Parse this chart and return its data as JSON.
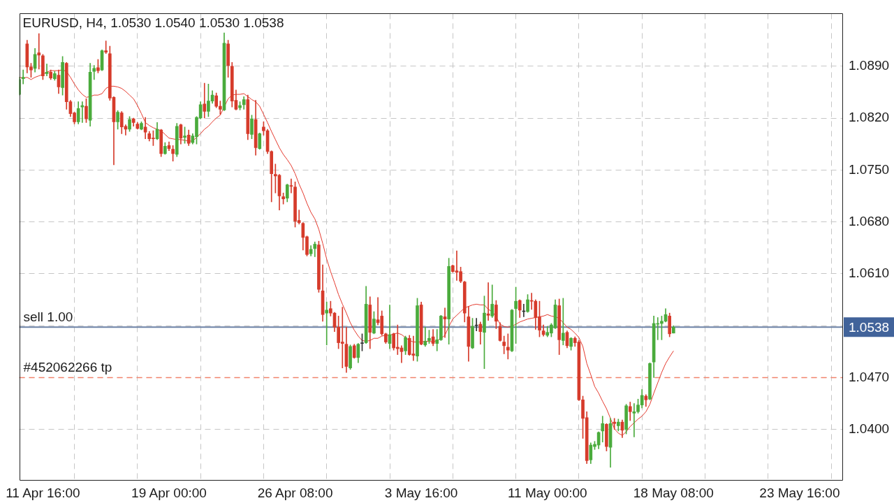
{
  "chart_data": {
    "type": "candlestick",
    "title": "EURUSD, H4, 1.0530 1.0540 1.0530 1.0538",
    "categories": [
      null,
      null,
      null,
      null,
      null,
      null,
      "11 Apr 16:00",
      null,
      null,
      null,
      null,
      null,
      null,
      null,
      null,
      null,
      null,
      null,
      null,
      null,
      null,
      null,
      null,
      null,
      null,
      null,
      null,
      null,
      null,
      null,
      null,
      null,
      null,
      null,
      null,
      null,
      null,
      null,
      "19 Apr 00:00",
      null,
      null,
      null,
      null,
      null,
      null,
      null,
      null,
      null,
      null,
      null,
      null,
      null,
      null,
      null,
      null,
      null,
      null,
      null,
      null,
      null,
      null,
      null,
      null,
      null,
      null,
      null,
      null,
      null,
      null,
      null,
      "26 Apr 08:00",
      null,
      null,
      null,
      null,
      null,
      null,
      null,
      null,
      null,
      null,
      null,
      null,
      null,
      null,
      null,
      null,
      null,
      null,
      null,
      null,
      null,
      null,
      null,
      null,
      null,
      null,
      null,
      null,
      null,
      null,
      null,
      "3 May 16:00",
      null,
      null,
      null,
      null,
      null,
      null,
      null,
      null,
      null,
      null,
      null,
      null,
      null,
      null,
      null,
      null,
      null,
      null,
      null,
      null,
      null,
      null,
      null,
      null,
      null,
      null,
      null,
      null,
      null,
      null,
      null,
      "11 May 00:00",
      null,
      null,
      null,
      null,
      null,
      null,
      null,
      null,
      null,
      null,
      null,
      null,
      null,
      null,
      null,
      null,
      null,
      null,
      null,
      null,
      null,
      null,
      null,
      null,
      null,
      null,
      null,
      null,
      null,
      null,
      null,
      "18 May 08:00",
      null,
      null,
      null,
      null,
      null,
      null,
      null,
      null,
      null,
      null,
      null,
      null,
      null,
      null,
      null,
      null,
      null,
      null,
      null,
      null,
      null,
      null,
      null,
      null,
      null,
      null,
      null,
      null,
      null,
      null,
      null,
      "23 May 16:00",
      null,
      null,
      null,
      null,
      null,
      null,
      null,
      null,
      null,
      null,
      null
    ],
    "ylim": [
      1.0331,
      1.0961
    ],
    "yticks": [
      {
        "value": 1.04,
        "label": "1.0400"
      },
      {
        "value": 1.047,
        "label": "1.0470"
      },
      {
        "value": 1.054,
        "label": null
      },
      {
        "value": 1.061,
        "label": "1.0610"
      },
      {
        "value": 1.068,
        "label": "1.0680"
      },
      {
        "value": 1.075,
        "label": "1.0750"
      },
      {
        "value": 1.082,
        "label": "1.0820"
      },
      {
        "value": 1.089,
        "label": "1.0890"
      }
    ],
    "grid": true,
    "series": [
      {
        "ohlc": [
          [
            1.0852,
            1.0875,
            1.0851,
            1.0872
          ],
          [
            1.0873,
            1.0885,
            1.0866,
            1.0875
          ],
          [
            1.092,
            1.0925,
            1.0881,
            1.0889
          ],
          [
            1.0889,
            1.0894,
            1.0875,
            1.0885
          ],
          [
            1.0887,
            1.0914,
            1.0882,
            1.0906
          ],
          [
            1.0908,
            1.0934,
            1.0886,
            1.0905
          ],
          [
            1.0904,
            1.0906,
            1.0872,
            1.0877
          ],
          [
            1.088,
            1.0893,
            1.0877,
            1.0882
          ],
          [
            1.0882,
            1.0885,
            1.0872,
            1.0874
          ],
          [
            1.0873,
            1.0883,
            1.0871,
            1.088
          ],
          [
            1.0878,
            1.0885,
            1.0853,
            1.0862
          ],
          [
            1.0861,
            1.0903,
            1.0851,
            1.0895
          ],
          [
            1.0894,
            1.0895,
            1.0832,
            1.0842
          ],
          [
            1.0842,
            1.0844,
            1.0822,
            1.0826
          ],
          [
            1.0827,
            1.0828,
            1.0812,
            1.0815
          ],
          [
            1.0815,
            1.0842,
            1.0812,
            1.0833
          ],
          [
            1.0835,
            1.0842,
            1.0814,
            1.0837
          ],
          [
            1.0836,
            1.0846,
            1.0814,
            1.0819
          ],
          [
            1.0817,
            1.0894,
            1.0809,
            1.0882
          ],
          [
            1.0883,
            1.0891,
            1.0872,
            1.0887
          ],
          [
            1.0888,
            1.0899,
            1.0881,
            1.0884
          ],
          [
            1.0885,
            1.0912,
            1.0884,
            1.0911
          ],
          [
            1.0911,
            1.0924,
            1.0907,
            1.0909
          ],
          [
            1.0907,
            1.0917,
            1.0844,
            1.0847
          ],
          [
            1.0848,
            1.0849,
            1.0757,
            1.0815
          ],
          [
            1.0815,
            1.083,
            1.0805,
            1.0828
          ],
          [
            1.0827,
            1.0829,
            1.0799,
            1.0808
          ],
          [
            1.0809,
            1.0811,
            1.0797,
            1.0805
          ],
          [
            1.0805,
            1.0822,
            1.0802,
            1.0818
          ],
          [
            1.0819,
            1.082,
            1.0809,
            1.0814
          ],
          [
            1.0812,
            1.0814,
            1.0805,
            1.0806
          ],
          [
            1.0805,
            1.0815,
            1.0804,
            1.0813
          ],
          [
            1.0808,
            1.0821,
            1.0792,
            1.0801
          ],
          [
            1.0799,
            1.0802,
            1.0789,
            1.0792
          ],
          [
            1.0793,
            1.0803,
            1.0783,
            1.0792
          ],
          [
            1.0792,
            1.0814,
            1.0791,
            1.0805
          ],
          [
            1.0804,
            1.0805,
            1.0768,
            1.0772
          ],
          [
            1.0772,
            1.0787,
            1.0771,
            1.0782
          ],
          [
            1.0783,
            1.0788,
            1.0776,
            1.0779
          ],
          [
            1.0778,
            1.0783,
            1.0762,
            1.0772
          ],
          [
            1.0771,
            1.0813,
            1.0768,
            1.0809
          ],
          [
            1.0811,
            1.0812,
            1.0785,
            1.0793
          ],
          [
            1.0794,
            1.0808,
            1.0786,
            1.0796
          ],
          [
            1.0797,
            1.0804,
            1.0783,
            1.0786
          ],
          [
            1.0787,
            1.0799,
            1.0785,
            1.0796
          ],
          [
            1.0795,
            1.0822,
            1.0785,
            1.0821
          ],
          [
            1.082,
            1.0842,
            1.0819,
            1.0838
          ],
          [
            1.0839,
            1.0867,
            1.082,
            1.0829
          ],
          [
            1.0829,
            1.0866,
            1.0822,
            1.0843
          ],
          [
            1.0843,
            1.0857,
            1.084,
            1.0851
          ],
          [
            1.085,
            1.0854,
            1.0834,
            1.0836
          ],
          [
            1.0836,
            1.0843,
            1.0825,
            1.0832
          ],
          [
            1.0831,
            1.0935,
            1.083,
            1.0921
          ],
          [
            1.092,
            1.0925,
            1.0875,
            1.0891
          ],
          [
            1.089,
            1.0895,
            1.0835,
            1.0843
          ],
          [
            1.0844,
            1.0858,
            1.0831,
            1.0832
          ],
          [
            1.0834,
            1.0842,
            1.0831,
            1.0837
          ],
          [
            1.0838,
            1.0849,
            1.0832,
            1.0845
          ],
          [
            1.0845,
            1.0851,
            1.0791,
            1.0799
          ],
          [
            1.0798,
            1.0824,
            1.0792,
            1.0819
          ],
          [
            1.0818,
            1.0844,
            1.077,
            1.078
          ],
          [
            1.0779,
            1.08,
            1.0778,
            1.0799
          ],
          [
            1.0808,
            1.0815,
            1.0797,
            1.0803
          ],
          [
            1.0803,
            1.0805,
            1.0772,
            1.0775
          ],
          [
            1.0775,
            1.0776,
            1.0707,
            1.0745
          ],
          [
            1.0744,
            1.0758,
            1.0719,
            1.0742
          ],
          [
            1.0743,
            1.0744,
            1.0696,
            1.0715
          ],
          [
            1.0714,
            1.0719,
            1.0704,
            1.0711
          ],
          [
            1.0712,
            1.0731,
            1.0707,
            1.073
          ],
          [
            1.0729,
            1.0738,
            1.0719,
            1.0728
          ],
          [
            1.0727,
            1.0734,
            1.0673,
            1.0681
          ],
          [
            1.0682,
            1.0696,
            1.0677,
            1.0679
          ],
          [
            1.0678,
            1.0679,
            1.0642,
            1.0659
          ],
          [
            1.066,
            1.0661,
            1.0634,
            1.0636
          ],
          [
            1.0637,
            1.0648,
            1.0634,
            1.0643
          ],
          [
            1.0644,
            1.0653,
            1.0633,
            1.065
          ],
          [
            1.0649,
            1.0654,
            1.0585,
            1.0589
          ],
          [
            1.0587,
            1.0622,
            1.0546,
            1.0555
          ],
          [
            1.0557,
            1.0572,
            1.0514,
            1.0561
          ],
          [
            1.0563,
            1.0573,
            1.0553,
            1.0557
          ],
          [
            1.0557,
            1.0558,
            1.0532,
            1.0538
          ],
          [
            1.0538,
            1.0553,
            1.0509,
            1.0517
          ],
          [
            1.0518,
            1.0565,
            1.0483,
            1.0516
          ],
          [
            1.0515,
            1.0538,
            1.0477,
            1.0485
          ],
          [
            1.0483,
            1.0514,
            1.0481,
            1.0512
          ],
          [
            1.0513,
            1.0515,
            1.0496,
            1.0497
          ],
          [
            1.0497,
            1.0516,
            1.049,
            1.0515
          ],
          [
            1.0516,
            1.0529,
            1.0506,
            1.0516
          ],
          [
            1.0517,
            1.0593,
            1.0516,
            1.0569
          ],
          [
            1.0568,
            1.0579,
            1.0509,
            1.0531
          ],
          [
            1.053,
            1.0559,
            1.0529,
            1.0549
          ],
          [
            1.0548,
            1.0578,
            1.0541,
            1.0544
          ],
          [
            1.0553,
            1.056,
            1.0527,
            1.0529
          ],
          [
            1.0529,
            1.053,
            1.0516,
            1.0518
          ],
          [
            1.0516,
            1.0568,
            1.0509,
            1.0528
          ],
          [
            1.0529,
            1.053,
            1.0507,
            1.051
          ],
          [
            1.0511,
            1.0541,
            1.0501,
            1.0509
          ],
          [
            1.051,
            1.0513,
            1.049,
            1.0505
          ],
          [
            1.0506,
            1.0526,
            1.0501,
            1.0524
          ],
          [
            1.0523,
            1.0527,
            1.05,
            1.0501
          ],
          [
            1.0502,
            1.0526,
            1.0493,
            1.05
          ],
          [
            1.0499,
            1.0577,
            1.0492,
            1.0567
          ],
          [
            1.0568,
            1.0572,
            1.0514,
            1.0515
          ],
          [
            1.0514,
            1.0538,
            1.0512,
            1.0519
          ],
          [
            1.052,
            1.0534,
            1.0516,
            1.0523
          ],
          [
            1.0525,
            1.0535,
            1.0513,
            1.0516
          ],
          [
            1.0516,
            1.0535,
            1.0506,
            1.0521
          ],
          [
            1.0521,
            1.0554,
            1.052,
            1.0553
          ],
          [
            1.0552,
            1.0564,
            1.0524,
            1.0549
          ],
          [
            1.0549,
            1.0631,
            1.0515,
            1.062
          ],
          [
            1.0621,
            1.0622,
            1.0612,
            1.0613
          ],
          [
            1.0614,
            1.0641,
            1.0601,
            1.0612
          ],
          [
            1.0613,
            1.0619,
            1.0598,
            1.06
          ],
          [
            1.0599,
            1.06,
            1.0545,
            1.0557
          ],
          [
            1.0552,
            1.0566,
            1.0492,
            1.0512
          ],
          [
            1.051,
            1.055,
            1.0509,
            1.0539
          ],
          [
            1.054,
            1.055,
            1.0533,
            1.054
          ],
          [
            1.0542,
            1.0545,
            1.0515,
            1.0532
          ],
          [
            1.0531,
            1.058,
            1.0482,
            1.0557
          ],
          [
            1.0556,
            1.0598,
            1.0547,
            1.0554
          ],
          [
            1.0553,
            1.0595,
            1.0551,
            1.0569
          ],
          [
            1.0568,
            1.0574,
            1.0536,
            1.0546
          ],
          [
            1.0539,
            1.0544,
            1.0519,
            1.052
          ],
          [
            1.0518,
            1.0526,
            1.0502,
            1.0513
          ],
          [
            1.0511,
            1.0529,
            1.0495,
            1.0507
          ],
          [
            1.0506,
            1.0562,
            1.0505,
            1.0561
          ],
          [
            1.0563,
            1.0592,
            1.0516,
            1.0573
          ],
          [
            1.0574,
            1.0575,
            1.0551,
            1.0561
          ],
          [
            1.0559,
            1.0569,
            1.0552,
            1.0559
          ],
          [
            1.0559,
            1.0582,
            1.0558,
            1.0575
          ],
          [
            1.0574,
            1.0584,
            1.0562,
            1.0573
          ],
          [
            1.0573,
            1.0575,
            1.0535,
            1.0551
          ],
          [
            1.0552,
            1.0573,
            1.0525,
            1.0534
          ],
          [
            1.0533,
            1.0541,
            1.0526,
            1.0528
          ],
          [
            1.0527,
            1.0539,
            1.0525,
            1.0531
          ],
          [
            1.053,
            1.0543,
            1.0525,
            1.0541
          ],
          [
            1.0537,
            1.0575,
            1.0536,
            1.0568
          ],
          [
            1.0567,
            1.0576,
            1.0501,
            1.0521
          ],
          [
            1.052,
            1.0577,
            1.0514,
            1.053
          ],
          [
            1.0531,
            1.0533,
            1.051,
            1.0513
          ],
          [
            1.0512,
            1.0524,
            1.0507,
            1.0523
          ],
          [
            1.0523,
            1.0525,
            1.0512,
            1.0517
          ],
          [
            1.0518,
            1.052,
            1.0439,
            1.044
          ],
          [
            1.044,
            1.0445,
            1.0388,
            1.0415
          ],
          [
            1.0416,
            1.0424,
            1.0354,
            1.0358
          ],
          [
            1.0359,
            1.0382,
            1.0354,
            1.0379
          ],
          [
            1.0377,
            1.0384,
            1.0373,
            1.038
          ],
          [
            1.0379,
            1.0397,
            1.0374,
            1.0396
          ],
          [
            1.0398,
            1.0418,
            1.0383,
            1.0408
          ],
          [
            1.0407,
            1.0408,
            1.0371,
            1.0377
          ],
          [
            1.0376,
            1.0415,
            1.0349,
            1.0408
          ],
          [
            1.041,
            1.0415,
            1.04,
            1.0408
          ],
          [
            1.0405,
            1.0414,
            1.0398,
            1.041
          ],
          [
            1.041,
            1.0413,
            1.0389,
            1.0399
          ],
          [
            1.04,
            1.0434,
            1.0394,
            1.0432
          ],
          [
            1.0431,
            1.0437,
            1.0412,
            1.0424
          ],
          [
            1.0422,
            1.0435,
            1.039,
            1.0424
          ],
          [
            1.0424,
            1.0441,
            1.0422,
            1.0433
          ],
          [
            1.0433,
            1.0454,
            1.0429,
            1.0446
          ],
          [
            1.0445,
            1.0447,
            1.0431,
            1.044
          ],
          [
            1.0441,
            1.049,
            1.044,
            1.0489
          ],
          [
            1.0491,
            1.0553,
            1.047,
            1.0543
          ],
          [
            1.0542,
            1.0551,
            1.0521,
            1.0543
          ],
          [
            1.0543,
            1.0553,
            1.0521,
            1.0546
          ],
          [
            1.0546,
            1.0563,
            1.0545,
            1.0555
          ],
          [
            1.0553,
            1.0557,
            1.0525,
            1.0529
          ],
          [
            1.053,
            1.054,
            1.053,
            1.0538
          ],
          null,
          null,
          null,
          null,
          null,
          null,
          null,
          null,
          null,
          null,
          null,
          null,
          null,
          null,
          null,
          null,
          null,
          null,
          null,
          null,
          null,
          null,
          null,
          null,
          null,
          null,
          null,
          null,
          null,
          null,
          null,
          null,
          null,
          null,
          null,
          null,
          null,
          null,
          null,
          null,
          null,
          null,
          null
        ],
        "colors": [
          "#4aab3c",
          "#4aab3c",
          "#d63b2b",
          "#d63b2b",
          "#4aab3c",
          "#d63b2b",
          "#d63b2b",
          "#4aab3c",
          "#d63b2b",
          "#4aab3c",
          "#d63b2b",
          "#4aab3c",
          "#d63b2b",
          "#d63b2b",
          "#d63b2b",
          "#4aab3c",
          "#4aab3c",
          "#d63b2b",
          "#4aab3c",
          "#4aab3c",
          "#d63b2b",
          "#4aab3c",
          "#d63b2b",
          "#d63b2b",
          "#d63b2b",
          "#4aab3c",
          "#d63b2b",
          "#d63b2b",
          "#4aab3c",
          "#d63b2b",
          "#d63b2b",
          "#4aab3c",
          "#d63b2b",
          "#d63b2b",
          "#d63b2b",
          "#4aab3c",
          "#d63b2b",
          "#4aab3c",
          "#d63b2b",
          "#d63b2b",
          "#4aab3c",
          "#d63b2b",
          "#4aab3c",
          "#d63b2b",
          "#4aab3c",
          "#4aab3c",
          "#4aab3c",
          "#d63b2b",
          "#4aab3c",
          "#4aab3c",
          "#d63b2b",
          "#d63b2b",
          "#4aab3c",
          "#d63b2b",
          "#d63b2b",
          "#d63b2b",
          "#4aab3c",
          "#4aab3c",
          "#d63b2b",
          "#4aab3c",
          "#d63b2b",
          "#4aab3c",
          "#d63b2b",
          "#d63b2b",
          "#d63b2b",
          "#d63b2b",
          "#d63b2b",
          "#d63b2b",
          "#4aab3c",
          "#d63b2b",
          "#d63b2b",
          "#d63b2b",
          "#d63b2b",
          "#d63b2b",
          "#4aab3c",
          "#4aab3c",
          "#d63b2b",
          "#d63b2b",
          "#4aab3c",
          "#d63b2b",
          "#d63b2b",
          "#d63b2b",
          "#d63b2b",
          "#d63b2b",
          "#4aab3c",
          "#d63b2b",
          "#4aab3c",
          "#333333",
          "#4aab3c",
          "#d63b2b",
          "#4aab3c",
          "#d63b2b",
          "#d63b2b",
          "#d63b2b",
          "#4aab3c",
          "#d63b2b",
          "#d63b2b",
          "#d63b2b",
          "#4aab3c",
          "#d63b2b",
          "#d63b2b",
          "#4aab3c",
          "#d63b2b",
          "#4aab3c",
          "#4aab3c",
          "#d63b2b",
          "#4aab3c",
          "#4aab3c",
          "#d63b2b",
          "#4aab3c",
          "#d63b2b",
          "#d63b2b",
          "#d63b2b",
          "#d63b2b",
          "#d63b2b",
          "#4aab3c",
          "#333333",
          "#d63b2b",
          "#4aab3c",
          "#d63b2b",
          "#4aab3c",
          "#d63b2b",
          "#d63b2b",
          "#d63b2b",
          "#d63b2b",
          "#4aab3c",
          "#4aab3c",
          "#d63b2b",
          "#333333",
          "#4aab3c",
          "#d63b2b",
          "#d63b2b",
          "#d63b2b",
          "#d63b2b",
          "#4aab3c",
          "#4aab3c",
          "#4aab3c",
          "#d63b2b",
          "#4aab3c",
          "#d63b2b",
          "#4aab3c",
          "#d63b2b",
          "#d63b2b",
          "#d63b2b",
          "#d63b2b",
          "#4aab3c",
          "#4aab3c",
          "#4aab3c",
          "#4aab3c",
          "#d63b2b",
          "#4aab3c",
          "#d63b2b",
          "#4aab3c",
          "#d63b2b",
          "#4aab3c",
          "#d63b2b",
          "#4aab3c",
          "#4aab3c",
          "#4aab3c",
          "#d63b2b",
          "#4aab3c",
          "#4aab3c",
          "#4aab3c",
          "#4aab3c",
          "#4aab3c",
          "#d63b2b",
          "#4aab3c",
          null,
          null,
          null,
          null,
          null,
          null,
          null,
          null,
          null,
          null,
          null,
          null,
          null,
          null,
          null,
          null,
          null,
          null,
          null,
          null,
          null,
          null,
          null,
          null,
          null,
          null,
          null,
          null,
          null,
          null,
          null,
          null,
          null,
          null,
          null,
          null,
          null,
          null,
          null,
          null,
          null,
          null,
          null
        ]
      },
      {
        "type": "line",
        "color": "#e53b2f",
        "values": [
          1.0875,
          1.0874,
          1.0875,
          1.0872,
          1.0875,
          1.0877,
          1.0879,
          1.0882,
          1.0884,
          1.0884,
          1.0884,
          1.0885,
          1.0883,
          1.0875,
          1.0866,
          1.0858,
          1.0852,
          1.0848,
          1.0849,
          1.0851,
          1.0851,
          1.0853,
          1.086,
          1.0863,
          1.0863,
          1.0862,
          1.086,
          1.0856,
          1.0851,
          1.0846,
          1.0837,
          1.0826,
          1.0814,
          1.081,
          1.0807,
          1.0805,
          1.0803,
          1.0798,
          1.0793,
          1.0792,
          1.0791,
          1.0791,
          1.079,
          1.0789,
          1.0789,
          1.0794,
          1.0799,
          1.0805,
          1.0809,
          1.0815,
          1.082,
          1.0824,
          1.0835,
          1.0846,
          1.0851,
          1.0852,
          1.0852,
          1.0853,
          1.0849,
          1.0845,
          1.0842,
          1.0836,
          1.0825,
          1.0814,
          1.0802,
          1.0791,
          1.078,
          1.0771,
          1.0764,
          1.0756,
          1.0745,
          1.0731,
          1.0719,
          1.0705,
          1.0693,
          1.0684,
          1.067,
          1.0651,
          1.063,
          1.0613,
          1.0598,
          1.0582,
          1.0569,
          1.0557,
          1.0544,
          1.0534,
          1.0526,
          1.052,
          1.0519,
          1.052,
          1.0523,
          1.0523,
          1.0526,
          1.0527,
          1.0527,
          1.0529,
          1.053,
          1.0528,
          1.0524,
          1.052,
          1.0518,
          1.0518,
          1.0518,
          1.0519,
          1.0519,
          1.0518,
          1.052,
          1.0523,
          1.0527,
          1.0539,
          1.0549,
          1.0554,
          1.0559,
          1.0564,
          1.0566,
          1.0568,
          1.0569,
          1.0568,
          1.0568,
          1.0562,
          1.0559,
          1.0552,
          1.0542,
          1.0539,
          1.0538,
          1.0539,
          1.0542,
          1.0545,
          1.0547,
          1.0549,
          1.055,
          1.0551,
          1.0552,
          1.0553,
          1.0555,
          1.0553,
          1.0552,
          1.055,
          1.0544,
          1.0538,
          1.0535,
          1.053,
          1.0524,
          1.0512,
          1.0489,
          1.0474,
          1.0458,
          1.0449,
          1.0438,
          1.0428,
          1.0415,
          1.0401,
          1.0395,
          1.0392,
          1.0397,
          1.0404,
          1.0409,
          1.0414,
          1.0418,
          1.0424,
          1.0434,
          1.0449,
          1.0463,
          1.0477,
          1.0489,
          1.0498,
          1.0506,
          null,
          null,
          null,
          null,
          null,
          null,
          null,
          null,
          null,
          null,
          null,
          null,
          null,
          null,
          null,
          null,
          null,
          null,
          null,
          null,
          null,
          null,
          null,
          null,
          null,
          null,
          null,
          null,
          null,
          null,
          null,
          null,
          null,
          null,
          null,
          null,
          null,
          null,
          null,
          null,
          null,
          null,
          null
        ]
      }
    ],
    "ref_lines": [
      {
        "axis": "y",
        "value": 1.0538,
        "label": "sell 1.00",
        "color": "#6c82a6",
        "line_style": "solid"
      },
      {
        "axis": "y",
        "value": 1.047,
        "label": "#452062266 tp",
        "color": "#f2836b",
        "line_style": "dashed"
      }
    ],
    "annotations": [
      "1.0538"
    ]
  }
}
